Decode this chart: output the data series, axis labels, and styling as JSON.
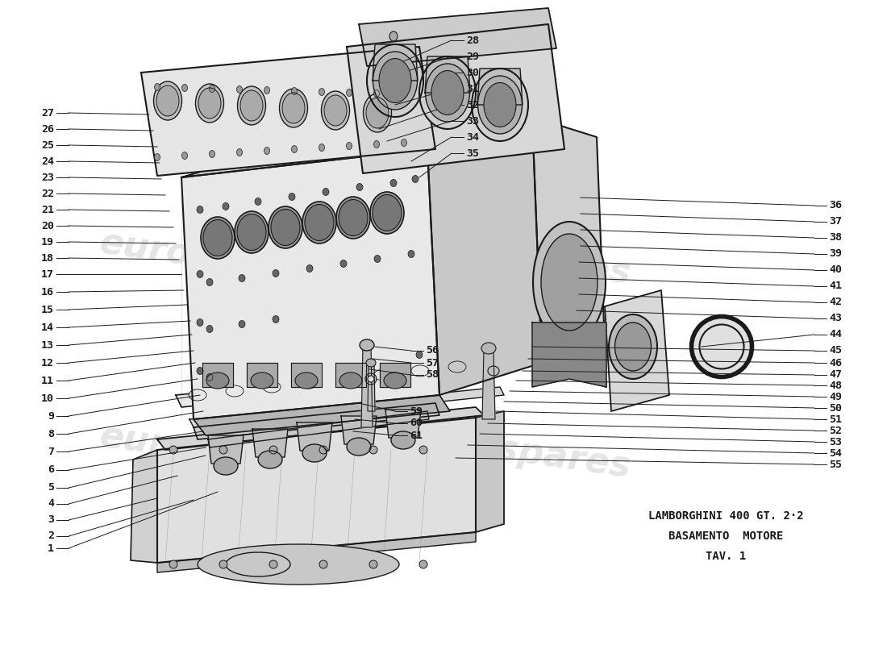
{
  "title_line1": "LAMBORGHINI 400 GT. 2·2",
  "title_line2": "BASAMENTO  MOTORE",
  "title_line3": "TAV. 1",
  "bg_color": "#ffffff",
  "line_color": "#1a1a1a",
  "fill_light": "#f2f2f2",
  "fill_mid": "#d8d8d8",
  "fill_dark": "#b0b0b0",
  "fill_darker": "#888888",
  "hatch_color": "#555555",
  "watermark_color": "#cccccc",
  "watermark_text": "eurospares",
  "figsize": [
    11.0,
    8.0
  ],
  "dpi": 100,
  "left_leaders": [
    [
      1,
      85,
      680,
      270,
      610
    ],
    [
      2,
      85,
      665,
      240,
      620
    ],
    [
      3,
      85,
      645,
      195,
      618
    ],
    [
      4,
      85,
      625,
      220,
      590
    ],
    [
      5,
      85,
      605,
      255,
      565
    ],
    [
      6,
      85,
      583,
      255,
      555
    ],
    [
      7,
      85,
      560,
      252,
      535
    ],
    [
      8,
      85,
      538,
      252,
      510
    ],
    [
      9,
      85,
      516,
      248,
      490
    ],
    [
      10,
      85,
      494,
      245,
      470
    ],
    [
      11,
      85,
      472,
      242,
      450
    ],
    [
      12,
      85,
      450,
      240,
      435
    ],
    [
      13,
      85,
      428,
      238,
      415
    ],
    [
      14,
      85,
      406,
      236,
      398
    ],
    [
      15,
      85,
      384,
      232,
      378
    ],
    [
      16,
      85,
      362,
      228,
      360
    ],
    [
      17,
      85,
      340,
      225,
      340
    ],
    [
      18,
      85,
      320,
      222,
      322
    ],
    [
      19,
      85,
      300,
      218,
      302
    ],
    [
      20,
      85,
      280,
      215,
      282
    ],
    [
      21,
      85,
      260,
      210,
      262
    ],
    [
      22,
      85,
      240,
      205,
      242
    ],
    [
      23,
      85,
      220,
      200,
      222
    ],
    [
      24,
      85,
      200,
      198,
      202
    ],
    [
      25,
      85,
      180,
      195,
      182
    ],
    [
      26,
      85,
      160,
      190,
      162
    ],
    [
      27,
      85,
      140,
      185,
      142
    ]
  ],
  "right_leaders": [
    [
      28,
      560,
      50,
      480,
      85
    ],
    [
      29,
      560,
      70,
      500,
      90
    ],
    [
      30,
      560,
      90,
      550,
      100
    ],
    [
      31,
      560,
      110,
      490,
      130
    ],
    [
      32,
      560,
      130,
      470,
      160
    ],
    [
      33,
      560,
      150,
      480,
      175
    ],
    [
      34,
      560,
      170,
      510,
      200
    ],
    [
      35,
      560,
      190,
      520,
      220
    ],
    [
      36,
      1010,
      255,
      720,
      245
    ],
    [
      37,
      1010,
      275,
      720,
      265
    ],
    [
      38,
      1010,
      295,
      720,
      285
    ],
    [
      39,
      1010,
      315,
      720,
      305
    ],
    [
      40,
      1010,
      335,
      718,
      325
    ],
    [
      41,
      1010,
      355,
      718,
      345
    ],
    [
      42,
      1010,
      375,
      718,
      365
    ],
    [
      43,
      1010,
      395,
      715,
      385
    ],
    [
      44,
      1010,
      415,
      870,
      430
    ],
    [
      45,
      1010,
      435,
      660,
      430
    ],
    [
      46,
      1010,
      450,
      655,
      445
    ],
    [
      47,
      1010,
      465,
      648,
      460
    ],
    [
      48,
      1010,
      478,
      640,
      472
    ],
    [
      49,
      1010,
      492,
      632,
      485
    ],
    [
      50,
      1010,
      506,
      625,
      498
    ],
    [
      51,
      1010,
      520,
      615,
      510
    ],
    [
      52,
      1010,
      534,
      605,
      525
    ],
    [
      53,
      1010,
      548,
      595,
      538
    ],
    [
      54,
      1010,
      562,
      580,
      552
    ],
    [
      55,
      1010,
      576,
      565,
      568
    ]
  ],
  "mid_leaders": [
    [
      56,
      510,
      435,
      465,
      430
    ],
    [
      57,
      510,
      450,
      462,
      445
    ],
    [
      58,
      510,
      465,
      458,
      458
    ],
    [
      59,
      490,
      510,
      445,
      500
    ],
    [
      60,
      490,
      525,
      440,
      520
    ],
    [
      61,
      490,
      540,
      438,
      535
    ]
  ]
}
